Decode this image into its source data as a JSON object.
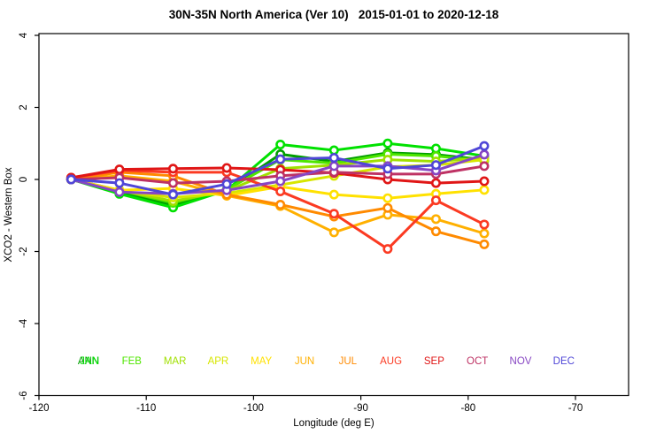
{
  "window": {
    "background": "#FFFFFF"
  },
  "chart_data": {
    "type": "line",
    "title": "30N-35N North America (Ver 10)   2015-01-01 to 2020-12-18",
    "xlabel": "Longitude (deg E)",
    "ylabel": "XCO2 - Western Box",
    "xlim": [
      -120,
      -65
    ],
    "ylim": [
      -6,
      4
    ],
    "x_ticks": [
      -120,
      -110,
      -100,
      -90,
      -80,
      -70
    ],
    "y_ticks": [
      4,
      2,
      0,
      -2,
      -4,
      -6
    ],
    "grid": false,
    "legend_position": "inside-bottom",
    "marker_style": "open-circle",
    "axis_color": "#000000",
    "x": [
      -117,
      -112.5,
      -107.5,
      -102.5,
      -97.5,
      -92.5,
      -87.5,
      -83,
      -78.5
    ],
    "series": [
      {
        "name": "ANN",
        "color": "#009E00",
        "values": [
          0.0,
          -0.35,
          -0.72,
          -0.3,
          0.7,
          0.5,
          0.74,
          0.69,
          0.55
        ]
      },
      {
        "name": "JAN",
        "color": "#00E100",
        "values": [
          0.0,
          -0.4,
          -0.78,
          -0.3,
          0.97,
          0.81,
          1.0,
          0.86,
          0.65
        ]
      },
      {
        "name": "FEB",
        "color": "#4FE600",
        "values": [
          0.0,
          -0.3,
          -0.65,
          -0.28,
          0.55,
          0.45,
          0.7,
          0.65,
          0.52
        ]
      },
      {
        "name": "MAR",
        "color": "#A0E000",
        "values": [
          0.0,
          -0.3,
          -0.6,
          -0.32,
          0.3,
          0.4,
          0.55,
          0.5,
          0.6
        ]
      },
      {
        "name": "APR",
        "color": "#D7E600",
        "values": [
          0.0,
          -0.32,
          -0.5,
          -0.38,
          -0.15,
          0.1,
          0.35,
          0.4,
          0.55
        ]
      },
      {
        "name": "MAY",
        "color": "#FFE100",
        "values": [
          0.0,
          -0.3,
          -0.25,
          -0.45,
          -0.2,
          -0.42,
          -0.52,
          -0.4,
          -0.29
        ]
      },
      {
        "name": "JUN",
        "color": "#FFB000",
        "values": [
          0.0,
          0.1,
          -0.05,
          -0.45,
          -0.74,
          -1.47,
          -0.98,
          -1.1,
          -1.5
        ]
      },
      {
        "name": "JUL",
        "color": "#FF8A00",
        "values": [
          0.0,
          0.2,
          0.1,
          -0.42,
          -0.7,
          -1.03,
          -0.79,
          -1.44,
          -1.8
        ]
      },
      {
        "name": "AUG",
        "color": "#FB3A22",
        "values": [
          0.05,
          0.25,
          0.2,
          0.2,
          -0.33,
          -0.95,
          -1.93,
          -0.58,
          -1.25
        ]
      },
      {
        "name": "SEP",
        "color": "#E01616",
        "values": [
          0.05,
          0.28,
          0.3,
          0.32,
          0.27,
          0.18,
          0.0,
          -0.1,
          -0.05
        ]
      },
      {
        "name": "OCT",
        "color": "#BE3264",
        "values": [
          0.0,
          0.05,
          -0.1,
          -0.05,
          0.1,
          0.2,
          0.15,
          0.15,
          0.37
        ]
      },
      {
        "name": "NOV",
        "color": "#8746C3",
        "values": [
          0.0,
          -0.35,
          -0.4,
          -0.3,
          -0.05,
          0.37,
          0.37,
          0.25,
          0.69
        ]
      },
      {
        "name": "DEC",
        "color": "#4F46D7",
        "values": [
          0.0,
          -0.1,
          -0.42,
          -0.13,
          0.56,
          0.6,
          0.3,
          0.4,
          0.93
        ]
      }
    ],
    "legend_labels": [
      "ANN",
      "JAN",
      "FEB",
      "MAR",
      "APR",
      "MAY",
      "JUN",
      "JUL",
      "AUG",
      "SEP",
      "OCT",
      "NOV",
      "DEC"
    ]
  }
}
